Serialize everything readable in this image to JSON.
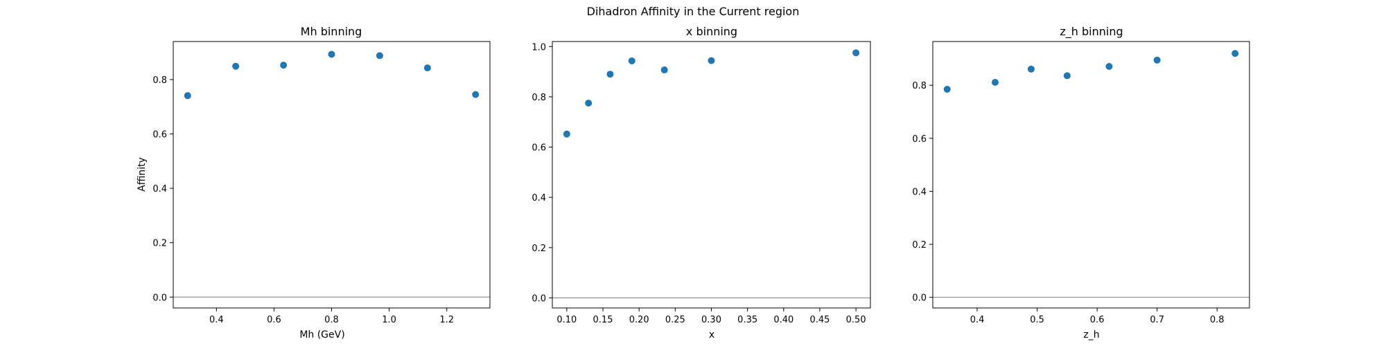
{
  "figure": {
    "suptitle": "Dihadron Affinity in the Current region"
  },
  "chart_data": [
    {
      "type": "scatter",
      "title": "Mh binning",
      "xlabel": "Mh (GeV)",
      "ylabel": "Affinity",
      "xlim": [
        0.25,
        1.35
      ],
      "ylim": [
        -0.04,
        0.94
      ],
      "xticks": [
        0.4,
        0.6,
        0.8,
        1.0,
        1.2
      ],
      "xtick_labels": [
        "0.4",
        "0.6",
        "0.8",
        "1.0",
        "1.2"
      ],
      "yticks": [
        0.0,
        0.2,
        0.4,
        0.6,
        0.8
      ],
      "ytick_labels": [
        "0.0",
        "0.2",
        "0.4",
        "0.6",
        "0.8"
      ],
      "hline": 0,
      "marker_color": "#1f77b4",
      "x": [
        0.3,
        0.467,
        0.633,
        0.8,
        0.967,
        1.133,
        1.3
      ],
      "y": [
        0.741,
        0.849,
        0.853,
        0.893,
        0.888,
        0.843,
        0.745
      ]
    },
    {
      "type": "scatter",
      "title": "x binning",
      "xlabel": "x",
      "ylabel": "",
      "xlim": [
        0.08,
        0.52
      ],
      "ylim": [
        -0.04,
        1.02
      ],
      "xticks": [
        0.1,
        0.15,
        0.2,
        0.25,
        0.3,
        0.35,
        0.4,
        0.45,
        0.5
      ],
      "xtick_labels": [
        "0.10",
        "0.15",
        "0.20",
        "0.25",
        "0.30",
        "0.35",
        "0.40",
        "0.45",
        "0.50"
      ],
      "yticks": [
        0.0,
        0.2,
        0.4,
        0.6,
        0.8,
        1.0
      ],
      "ytick_labels": [
        "0.0",
        "0.2",
        "0.4",
        "0.6",
        "0.8",
        "1.0"
      ],
      "hline": 0,
      "marker_color": "#1f77b4",
      "x": [
        0.1,
        0.13,
        0.16,
        0.19,
        0.235,
        0.3,
        0.5
      ],
      "y": [
        0.652,
        0.775,
        0.89,
        0.943,
        0.907,
        0.944,
        0.975
      ]
    },
    {
      "type": "scatter",
      "title": "z_h binning",
      "xlabel": "z_h",
      "ylabel": "",
      "xlim": [
        0.326,
        0.854
      ],
      "ylim": [
        -0.04,
        0.965
      ],
      "xticks": [
        0.4,
        0.5,
        0.6,
        0.7,
        0.8
      ],
      "xtick_labels": [
        "0.4",
        "0.5",
        "0.6",
        "0.7",
        "0.8"
      ],
      "yticks": [
        0.0,
        0.2,
        0.4,
        0.6,
        0.8
      ],
      "ytick_labels": [
        "0.0",
        "0.2",
        "0.4",
        "0.6",
        "0.8"
      ],
      "hline": 0,
      "marker_color": "#1f77b4",
      "x": [
        0.35,
        0.43,
        0.49,
        0.55,
        0.62,
        0.7,
        0.83
      ],
      "y": [
        0.785,
        0.811,
        0.861,
        0.836,
        0.871,
        0.895,
        0.92
      ]
    }
  ]
}
